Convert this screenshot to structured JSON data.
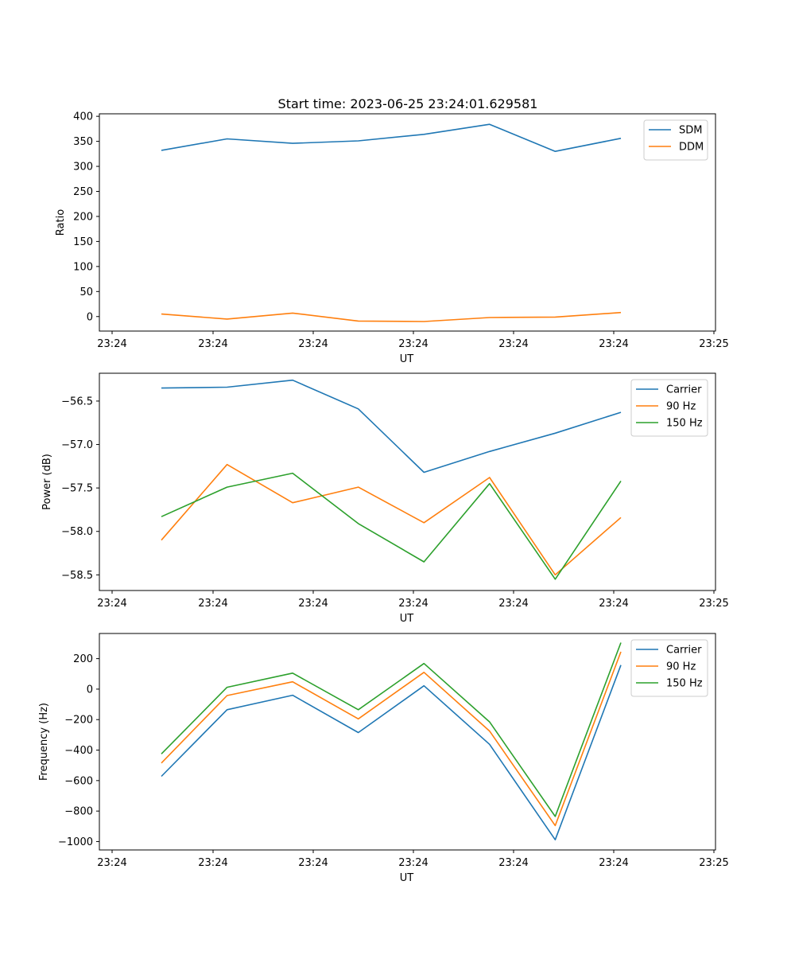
{
  "figure": {
    "title": "Start time: 2023-06-25 23:24:01.629581"
  },
  "colors": {
    "blue": "#1f77b4",
    "orange": "#ff7f0e",
    "green": "#2ca02c",
    "axis": "#000000",
    "legend_border": "#cccccc"
  },
  "chart_data": [
    {
      "type": "line",
      "name": "ratio",
      "xlabel": "UT",
      "ylabel": "Ratio",
      "x_ticks": [
        "23:24",
        "23:24",
        "23:24",
        "23:24",
        "23:24",
        "23:24",
        "23:24"
      ],
      "x_tick_positions": [
        0,
        1,
        2,
        3,
        4,
        5,
        6
      ],
      "x_last_tick": "23:25",
      "x_last_tick_position": 6,
      "xlim": [
        -0.5,
        5.55
      ],
      "ylim": [
        -29,
        405
      ],
      "y_ticks": [
        0,
        50,
        100,
        150,
        200,
        250,
        300,
        350,
        400
      ],
      "y_tick_labels": [
        "0",
        "50",
        "100",
        "150",
        "200",
        "250",
        "300",
        "350",
        "400"
      ],
      "x": [
        0,
        0.66,
        1.32,
        1.98,
        2.64,
        3.3,
        3.96,
        4.62
      ],
      "legend": "upper right",
      "series": [
        {
          "name": "SDM",
          "color": "blue",
          "values": [
            332,
            355,
            346,
            351,
            364,
            384,
            330,
            356
          ]
        },
        {
          "name": "DDM",
          "color": "orange",
          "values": [
            5,
            -5,
            7,
            -9,
            -10,
            -2,
            -1,
            8
          ]
        }
      ]
    },
    {
      "type": "line",
      "name": "power",
      "xlabel": "UT",
      "ylabel": "Power (dB)",
      "x_ticks": [
        "23:24",
        "23:24",
        "23:24",
        "23:24",
        "23:24",
        "23:24",
        "23:24"
      ],
      "x_last_tick": "23:25",
      "xlim": [
        -0.5,
        5.55
      ],
      "ylim": [
        -58.68,
        -56.18
      ],
      "y_ticks": [
        -56.5,
        -57.0,
        -57.5,
        -58.0,
        -58.5
      ],
      "y_tick_labels": [
        "−56.5",
        "−57.0",
        "−57.5",
        "−58.0",
        "−58.5"
      ],
      "x": [
        0,
        0.66,
        1.32,
        1.98,
        2.64,
        3.3,
        3.96,
        4.62
      ],
      "legend": "upper right",
      "series": [
        {
          "name": "Carrier",
          "color": "blue",
          "values": [
            -56.35,
            -56.34,
            -56.26,
            -56.59,
            -57.32,
            -57.08,
            -56.87,
            -56.63
          ]
        },
        {
          "name": "90 Hz",
          "color": "orange",
          "values": [
            -58.1,
            -57.23,
            -57.67,
            -57.49,
            -57.9,
            -57.38,
            -58.5,
            -57.84
          ]
        },
        {
          "name": "150 Hz",
          "color": "green",
          "values": [
            -57.83,
            -57.49,
            -57.33,
            -57.91,
            -58.35,
            -57.45,
            -58.55,
            -57.42
          ]
        }
      ]
    },
    {
      "type": "line",
      "name": "frequency",
      "xlabel": "UT",
      "ylabel": "Frequency (Hz)",
      "x_ticks": [
        "23:24",
        "23:24",
        "23:24",
        "23:24",
        "23:24",
        "23:24",
        "23:24"
      ],
      "x_last_tick": "23:25",
      "xlim": [
        -0.5,
        5.55
      ],
      "ylim": [
        -1055,
        365
      ],
      "y_ticks": [
        200,
        0,
        -200,
        -400,
        -600,
        -800,
        -1000
      ],
      "y_tick_labels": [
        "200",
        "0",
        "−200",
        "−400",
        "−600",
        "−800",
        "−1000"
      ],
      "x": [
        0,
        0.66,
        1.32,
        1.98,
        2.64,
        3.3,
        3.96,
        4.62
      ],
      "legend": "upper right",
      "series": [
        {
          "name": "Carrier",
          "color": "blue",
          "values": [
            -572,
            -135,
            -40,
            -285,
            22,
            -362,
            -988,
            158
          ]
        },
        {
          "name": "90 Hz",
          "color": "orange",
          "values": [
            -485,
            -42,
            48,
            -195,
            110,
            -275,
            -895,
            245
          ]
        },
        {
          "name": "150 Hz",
          "color": "green",
          "values": [
            -425,
            12,
            105,
            -135,
            168,
            -215,
            -835,
            305
          ]
        }
      ]
    }
  ]
}
